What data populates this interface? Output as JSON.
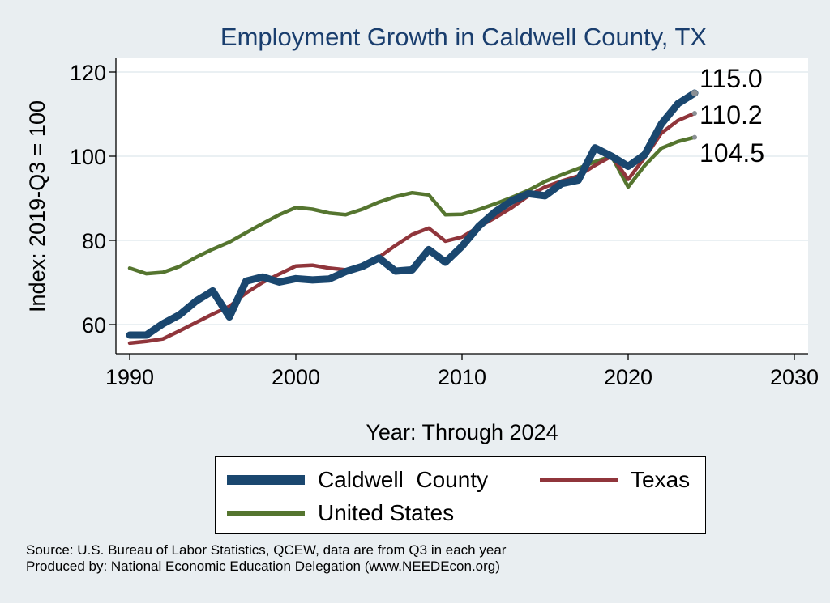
{
  "colors": {
    "background": "#e9eef1",
    "plot_area": "#ffffff",
    "grid": "#eaf0f3",
    "title": "#1a3e6e",
    "caldwell": "#1a476f",
    "texas": "#90353b",
    "us": "#55752f"
  },
  "chart_data": {
    "type": "line",
    "title": "Employment Growth in Caldwell County, TX",
    "xlabel": "Year: Through 2024",
    "ylabel": "Index: 2019-Q3 = 100",
    "xlim": [
      1990,
      2030
    ],
    "ylim": [
      52,
      124
    ],
    "xticks": [
      1990,
      2000,
      2010,
      2020,
      2030
    ],
    "yticks": [
      60,
      80,
      100,
      120
    ],
    "grid": true,
    "x": [
      1990,
      1991,
      1992,
      1993,
      1994,
      1995,
      1996,
      1997,
      1998,
      1999,
      2000,
      2001,
      2002,
      2003,
      2004,
      2005,
      2006,
      2007,
      2008,
      2009,
      2010,
      2011,
      2012,
      2013,
      2014,
      2015,
      2016,
      2017,
      2018,
      2019,
      2020,
      2021,
      2022,
      2023,
      2024
    ],
    "series": [
      {
        "name": "Caldwell  County",
        "color": "#1a476f",
        "values": [
          57.5,
          57.5,
          60.2,
          62.3,
          65.6,
          68.0,
          61.8,
          70.3,
          71.3,
          70.1,
          70.9,
          70.6,
          70.8,
          72.6,
          73.8,
          75.8,
          72.7,
          73.0,
          77.8,
          74.8,
          78.6,
          83.3,
          86.8,
          89.4,
          91.1,
          90.6,
          93.5,
          94.3,
          102.0,
          100.0,
          97.6,
          100.4,
          107.7,
          112.5,
          115.0
        ]
      },
      {
        "name": "Texas",
        "color": "#90353b",
        "values": [
          55.6,
          56.0,
          56.6,
          58.5,
          60.5,
          62.5,
          64.3,
          67.5,
          70.0,
          72.0,
          73.9,
          74.1,
          73.4,
          73.0,
          73.7,
          76.0,
          78.8,
          81.4,
          82.9,
          79.8,
          80.8,
          83.2,
          85.4,
          87.8,
          90.6,
          92.7,
          94.1,
          95.3,
          97.8,
          100.0,
          94.5,
          99.7,
          105.5,
          108.5,
          110.2
        ]
      },
      {
        "name": "United States",
        "color": "#55752f",
        "values": [
          73.4,
          72.1,
          72.4,
          73.8,
          76.0,
          77.9,
          79.6,
          81.8,
          84.0,
          86.1,
          87.8,
          87.4,
          86.5,
          86.1,
          87.4,
          89.1,
          90.4,
          91.3,
          90.8,
          86.1,
          86.2,
          87.3,
          88.7,
          90.2,
          91.9,
          94.0,
          95.6,
          97.1,
          98.7,
          100.0,
          92.7,
          97.8,
          101.9,
          103.5,
          104.5
        ]
      }
    ],
    "end_labels": [
      "115.0",
      "110.2",
      "104.5"
    ],
    "legend_position": "bottom",
    "notes": [
      "Source: U.S. Bureau of Labor Statistics, QCEW, data are from Q3 in each year",
      "Produced by: National Economic Education Delegation (www.NEEDEcon.org)"
    ]
  }
}
